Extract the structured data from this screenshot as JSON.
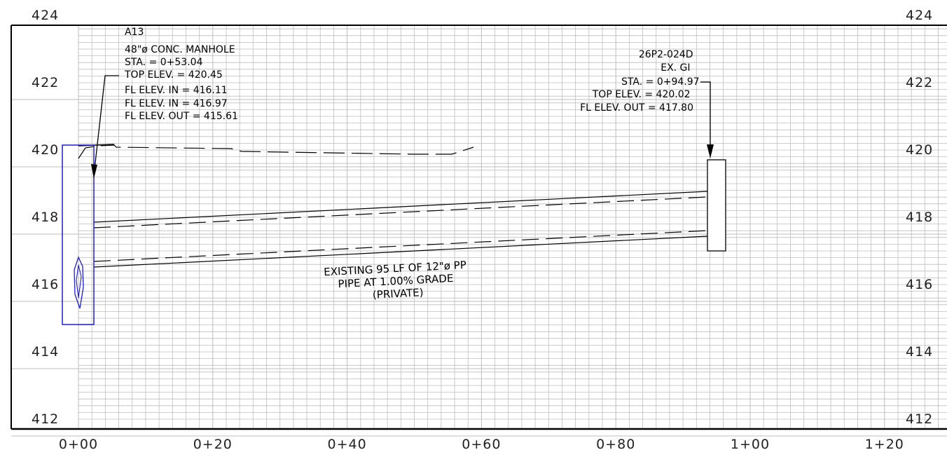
{
  "profile": {
    "y_axis": {
      "ticks": [
        424,
        422,
        420,
        418,
        416,
        414,
        412
      ],
      "min": 412,
      "max": 424.5
    },
    "x_axis": {
      "ticks": [
        "0+00",
        "0+20",
        "0+40",
        "0+60",
        "0+80",
        "1+00",
        "1+20"
      ],
      "min": 0,
      "max": 120
    },
    "colors": {
      "grid": "#bdbdbd",
      "linework": "#000000",
      "manhole": "#1f1fd0",
      "frame": "#000000"
    }
  },
  "structures": {
    "manhole": {
      "lines": [
        "A13",
        "48\"ø CONC. MANHOLE",
        "STA. = 0+53.04",
        "TOP ELEV. = 420.45",
        "FL ELEV. IN = 416.11",
        "FL ELEV. IN = 416.97",
        "FL ELEV. OUT = 415.61"
      ]
    },
    "inlet": {
      "lines": [
        "26P2-024D",
        "EX. GI",
        "STA. = 0+94.97",
        "TOP ELEV. = 420.02",
        "FL ELEV. OUT = 417.80"
      ]
    }
  },
  "pipe": {
    "lines": [
      "EXISTING 95 LF OF 12\"ø PP",
      "PIPE AT 1.00% GRADE",
      "(PRIVATE)"
    ]
  }
}
